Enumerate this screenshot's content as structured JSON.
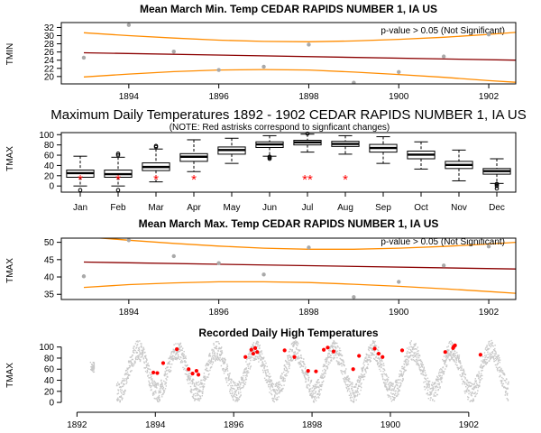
{
  "colors": {
    "trend": "#8b0000",
    "bounds": "#ff8c00",
    "points": "#a9a9a9",
    "daily": "#c8c8c8",
    "record": "#ff0000",
    "axis": "#000000"
  },
  "chart_data": [
    {
      "type": "scatter",
      "title": "Mean March Min. Temp CEDAR RAPIDS NUMBER 1, IA US",
      "ylabel": "TMIN",
      "xlim": [
        1892.5,
        1902.6
      ],
      "ylim": [
        18.2,
        33.2
      ],
      "xticks": [
        1894,
        1896,
        1898,
        1900,
        1902
      ],
      "yticks": [
        20,
        22,
        24,
        26,
        28,
        30,
        32
      ],
      "annotation": "p-value > 0.05 (Not Significant)",
      "points": [
        {
          "x": 1893,
          "y": 24.6
        },
        {
          "x": 1894,
          "y": 32.6
        },
        {
          "x": 1895,
          "y": 26.1
        },
        {
          "x": 1896,
          "y": 21.6
        },
        {
          "x": 1897,
          "y": 22.4
        },
        {
          "x": 1898,
          "y": 27.8
        },
        {
          "x": 1899,
          "y": 18.5
        },
        {
          "x": 1900,
          "y": 21.1
        },
        {
          "x": 1901,
          "y": 24.9
        },
        {
          "x": 1902,
          "y": 30.3
        }
      ],
      "trend": [
        {
          "x": 1893,
          "y": 25.8
        },
        {
          "x": 1902.6,
          "y": 24.0
        }
      ],
      "upper": [
        {
          "x": 1893,
          "y": 30.7
        },
        {
          "x": 1894,
          "y": 30.0
        },
        {
          "x": 1895,
          "y": 29.4
        },
        {
          "x": 1896,
          "y": 28.9
        },
        {
          "x": 1897,
          "y": 28.6
        },
        {
          "x": 1898,
          "y": 28.5
        },
        {
          "x": 1899,
          "y": 28.7
        },
        {
          "x": 1900,
          "y": 29.1
        },
        {
          "x": 1901,
          "y": 29.6
        },
        {
          "x": 1902,
          "y": 30.3
        },
        {
          "x": 1902.6,
          "y": 30.8
        }
      ],
      "lower": [
        {
          "x": 1893,
          "y": 19.9
        },
        {
          "x": 1894,
          "y": 20.6
        },
        {
          "x": 1895,
          "y": 21.2
        },
        {
          "x": 1896,
          "y": 21.6
        },
        {
          "x": 1897,
          "y": 21.7
        },
        {
          "x": 1898,
          "y": 21.6
        },
        {
          "x": 1899,
          "y": 21.1
        },
        {
          "x": 1900,
          "y": 20.5
        },
        {
          "x": 1901,
          "y": 19.8
        },
        {
          "x": 1902,
          "y": 19.0
        },
        {
          "x": 1902.6,
          "y": 18.6
        }
      ]
    },
    {
      "type": "box",
      "title": "Maximum Daily Temperatures 1892 - 1902 CEDAR RAPIDS NUMBER 1, IA US",
      "subtitle": "(NOTE: Red astrisks correspond to signficant changes)",
      "ylabel": "TMAX",
      "ylim": [
        -12,
        104
      ],
      "yticks": [
        0,
        20,
        40,
        60,
        80,
        100
      ],
      "categories": [
        "Jan",
        "Feb",
        "Mar",
        "Apr",
        "May",
        "Jun",
        "Jul",
        "Aug",
        "Sep",
        "Oct",
        "Nov",
        "Dec"
      ],
      "boxes": [
        {
          "min": 0,
          "q1": 17,
          "median": 25,
          "q3": 31,
          "max": 58,
          "outliers": [
            -8
          ]
        },
        {
          "min": 0,
          "q1": 17,
          "median": 23,
          "q3": 31,
          "max": 56,
          "outliers": [
            -8,
            60,
            63
          ]
        },
        {
          "min": 8,
          "q1": 30,
          "median": 37,
          "q3": 45,
          "max": 72,
          "outliers": [
            76,
            78
          ]
        },
        {
          "min": 28,
          "q1": 48,
          "median": 57,
          "q3": 63,
          "max": 90,
          "outliers": []
        },
        {
          "min": 44,
          "q1": 62,
          "median": 70,
          "q3": 76,
          "max": 93,
          "outliers": []
        },
        {
          "min": 58,
          "q1": 75,
          "median": 81,
          "q3": 86,
          "max": 98,
          "outliers": [
            53,
            55,
            57
          ]
        },
        {
          "min": 66,
          "q1": 80,
          "median": 85,
          "q3": 89,
          "max": 101,
          "outliers": [
            102
          ]
        },
        {
          "min": 62,
          "q1": 77,
          "median": 82,
          "q3": 87,
          "max": 98,
          "outliers": []
        },
        {
          "min": 44,
          "q1": 66,
          "median": 74,
          "q3": 81,
          "max": 96,
          "outliers": []
        },
        {
          "min": 33,
          "q1": 53,
          "median": 61,
          "q3": 68,
          "max": 86,
          "outliers": []
        },
        {
          "min": 10,
          "q1": 34,
          "median": 41,
          "q3": 48,
          "max": 70,
          "outliers": []
        },
        {
          "min": 5,
          "q1": 23,
          "median": 29,
          "q3": 34,
          "max": 53,
          "outliers": [
            -5,
            0,
            3,
            4
          ]
        }
      ],
      "significant": [
        "*",
        "*",
        "*",
        "*",
        "",
        "",
        "**",
        "*",
        "",
        "",
        "",
        ""
      ],
      "significant_y": 18
    },
    {
      "type": "scatter",
      "title": "Mean March Max. Temp CEDAR RAPIDS NUMBER 1, IA US",
      "ylabel": "TMAX",
      "xlim": [
        1892.5,
        1902.6
      ],
      "ylim": [
        33.5,
        51.2
      ],
      "xticks": [
        1894,
        1896,
        1898,
        1900,
        1902
      ],
      "yticks": [
        35,
        40,
        45,
        50
      ],
      "annotation": "p-value > 0.05 (Not Significant)",
      "points": [
        {
          "x": 1893,
          "y": 40.2
        },
        {
          "x": 1894,
          "y": 50.6
        },
        {
          "x": 1895,
          "y": 46.0
        },
        {
          "x": 1896,
          "y": 44.0
        },
        {
          "x": 1897,
          "y": 40.7
        },
        {
          "x": 1898,
          "y": 48.5
        },
        {
          "x": 1899,
          "y": 34.2
        },
        {
          "x": 1900,
          "y": 38.6
        },
        {
          "x": 1901,
          "y": 43.3
        },
        {
          "x": 1902,
          "y": 48.8
        }
      ],
      "trend": [
        {
          "x": 1893,
          "y": 44.3
        },
        {
          "x": 1902.6,
          "y": 42.3
        }
      ],
      "upper": [
        {
          "x": 1893,
          "y": 51.6
        },
        {
          "x": 1894,
          "y": 50.6
        },
        {
          "x": 1895,
          "y": 49.7
        },
        {
          "x": 1896,
          "y": 48.9
        },
        {
          "x": 1897,
          "y": 48.3
        },
        {
          "x": 1898,
          "y": 48.0
        },
        {
          "x": 1899,
          "y": 48.0
        },
        {
          "x": 1900,
          "y": 48.3
        },
        {
          "x": 1901,
          "y": 48.8
        },
        {
          "x": 1902,
          "y": 49.5
        },
        {
          "x": 1902.6,
          "y": 50.0
        }
      ],
      "lower": [
        {
          "x": 1893,
          "y": 37.0
        },
        {
          "x": 1894,
          "y": 37.8
        },
        {
          "x": 1895,
          "y": 38.3
        },
        {
          "x": 1896,
          "y": 38.6
        },
        {
          "x": 1897,
          "y": 38.6
        },
        {
          "x": 1898,
          "y": 38.4
        },
        {
          "x": 1899,
          "y": 37.9
        },
        {
          "x": 1900,
          "y": 37.3
        },
        {
          "x": 1901,
          "y": 36.6
        },
        {
          "x": 1902,
          "y": 35.8
        },
        {
          "x": 1902.6,
          "y": 35.3
        }
      ]
    },
    {
      "type": "scatter",
      "title": "Recorded Daily High Temperatures",
      "ylabel": "TMAX",
      "xlim": [
        1891.6,
        1903.2
      ],
      "ylim": [
        -8,
        106
      ],
      "xticks": [
        1892,
        1894,
        1896,
        1898,
        1900,
        1902
      ],
      "yticks": [
        0,
        20,
        40,
        60,
        80,
        100
      ],
      "daily_range": {
        "start": 1893.0,
        "end": 1903.0,
        "mean": 57,
        "amplitude": 38,
        "peak_phase": 0.55
      },
      "records": [
        {
          "x": 1893.95,
          "y": 54
        },
        {
          "x": 1894.05,
          "y": 53
        },
        {
          "x": 1894.2,
          "y": 71
        },
        {
          "x": 1894.55,
          "y": 96
        },
        {
          "x": 1894.85,
          "y": 60
        },
        {
          "x": 1894.95,
          "y": 52
        },
        {
          "x": 1895.05,
          "y": 57
        },
        {
          "x": 1895.1,
          "y": 50
        },
        {
          "x": 1896.3,
          "y": 82
        },
        {
          "x": 1896.45,
          "y": 95
        },
        {
          "x": 1896.5,
          "y": 88
        },
        {
          "x": 1896.55,
          "y": 98
        },
        {
          "x": 1896.6,
          "y": 91
        },
        {
          "x": 1897.3,
          "y": 94
        },
        {
          "x": 1897.55,
          "y": 82
        },
        {
          "x": 1897.9,
          "y": 57
        },
        {
          "x": 1898.1,
          "y": 56
        },
        {
          "x": 1898.3,
          "y": 95
        },
        {
          "x": 1898.4,
          "y": 99
        },
        {
          "x": 1898.55,
          "y": 92
        },
        {
          "x": 1899.05,
          "y": 60
        },
        {
          "x": 1899.2,
          "y": 84
        },
        {
          "x": 1899.6,
          "y": 97
        },
        {
          "x": 1899.7,
          "y": 88
        },
        {
          "x": 1899.8,
          "y": 82
        },
        {
          "x": 1900.3,
          "y": 94
        },
        {
          "x": 1901.4,
          "y": 91
        },
        {
          "x": 1901.6,
          "y": 98
        },
        {
          "x": 1901.62,
          "y": 101
        },
        {
          "x": 1901.65,
          "y": 103
        },
        {
          "x": 1902.3,
          "y": 86
        }
      ]
    }
  ]
}
